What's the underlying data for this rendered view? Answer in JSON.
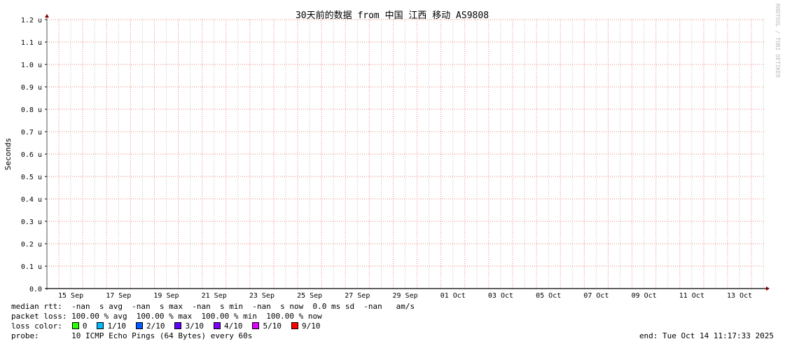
{
  "chart_data": {
    "type": "line",
    "title": "30天前的数据 from 中国 江西 移动 AS9808",
    "ylabel": "Seconds",
    "xlabel": "",
    "ylim": [
      0,
      1.2
    ],
    "yticks": [
      "0.0",
      "0.1 u",
      "0.2 u",
      "0.3 u",
      "0.4 u",
      "0.5 u",
      "0.6 u",
      "0.7 u",
      "0.8 u",
      "0.9 u",
      "1.0 u",
      "1.1 u",
      "1.2 u"
    ],
    "ytick_values": [
      0,
      0.1,
      0.2,
      0.3,
      0.4,
      0.5,
      0.6,
      0.7,
      0.8,
      0.9,
      1.0,
      1.1,
      1.2
    ],
    "xticks": [
      "15 Sep",
      "17 Sep",
      "19 Sep",
      "21 Sep",
      "23 Sep",
      "25 Sep",
      "27 Sep",
      "29 Sep",
      "01 Oct",
      "03 Oct",
      "05 Oct",
      "07 Oct",
      "09 Oct",
      "11 Oct",
      "13 Oct"
    ],
    "grid": true,
    "series": [],
    "watermark": "RRDTOOL / TOBI OETIKER",
    "colors": {
      "major_grid": "#f08080",
      "minor_grid": "#c0c0c0",
      "axis": "#000000",
      "arrow": "#800000"
    }
  },
  "legend": {
    "median_rtt": "median rtt:  -nan  s avg  -nan  s max  -nan  s min  -nan  s now  0.0 ms sd  -nan   am/s",
    "packet_loss": "packet loss: 100.00 % avg  100.00 % max  100.00 % min  100.00 % now",
    "loss_color_label": "loss color:",
    "loss_colors": [
      {
        "label": "0",
        "color": "#26ff00"
      },
      {
        "label": "1/10",
        "color": "#00b8ff"
      },
      {
        "label": "2/10",
        "color": "#0059ff"
      },
      {
        "label": "3/10",
        "color": "#5e00ff"
      },
      {
        "label": "4/10",
        "color": "#7e00ff"
      },
      {
        "label": "5/10",
        "color": "#dd00ff"
      },
      {
        "label": "9/10",
        "color": "#ff0000"
      }
    ],
    "probe": "probe:       10 ICMP Echo Pings (64 Bytes) every 60s",
    "end": "end: Tue Oct 14 11:17:33 2025"
  }
}
